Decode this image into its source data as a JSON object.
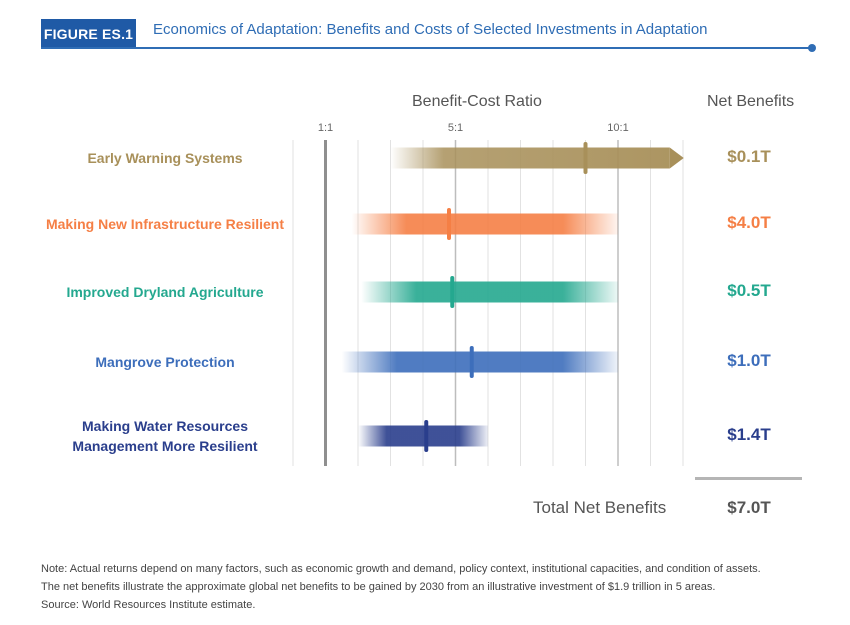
{
  "figure": {
    "badge": "FIGURE ES.1",
    "title": "Economics of Adaptation: Benefits and Costs of Selected Investments in Adaptation"
  },
  "headers": {
    "ratio": "Benefit-Cost Ratio",
    "net": "Net Benefits"
  },
  "chart_data": {
    "type": "bar",
    "title": "Economics of Adaptation: Benefits and Costs of Selected Investments in Adaptation",
    "xlabel": "Benefit-Cost Ratio",
    "xlim": [
      0,
      12
    ],
    "ticks": [
      {
        "value": 1,
        "label": "1:1"
      },
      {
        "value": 5,
        "label": "5:1"
      },
      {
        "value": 10,
        "label": "10:1"
      }
    ],
    "grid": true,
    "categories": [
      "Early Warning Systems",
      "Making New Infrastructure Resilient",
      "Improved Dryland Agriculture",
      "Mangrove Protection",
      "Making Water Resources Management More Resilient"
    ],
    "series": [
      {
        "category": "Early Warning Systems",
        "color": "#a8905a",
        "low": 3.0,
        "high": 11.9,
        "midpoint": 9.0,
        "open_ended": true,
        "net_benefits": "$0.1T"
      },
      {
        "category": "Making New Infrastructure Resilient",
        "color": "#f57f45",
        "low": 1.8,
        "high": 10.0,
        "midpoint": 4.8,
        "open_ended": false,
        "net_benefits": "$4.0T"
      },
      {
        "category": "Improved Dryland Agriculture",
        "color": "#24a88f",
        "low": 2.1,
        "high": 10.0,
        "midpoint": 4.9,
        "open_ended": false,
        "net_benefits": "$0.5T"
      },
      {
        "category": "Mangrove Protection",
        "color": "#3d6ebb",
        "low": 1.5,
        "high": 10.0,
        "midpoint": 5.5,
        "open_ended": false,
        "net_benefits": "$1.0T"
      },
      {
        "category": "Making Water Resources Management More Resilient",
        "color": "#2a3e8c",
        "low": 2.0,
        "high": 6.0,
        "midpoint": 4.1,
        "open_ended": false,
        "net_benefits": "$1.4T"
      }
    ],
    "total": {
      "label": "Total Net Benefits",
      "value": "$7.0T"
    }
  },
  "labels": [
    {
      "lines": [
        "Early Warning Systems"
      ],
      "color": "#a8905a"
    },
    {
      "lines": [
        "Making New Infrastructure Resilient"
      ],
      "color": "#f57f45"
    },
    {
      "lines": [
        "Improved Dryland Agriculture"
      ],
      "color": "#24a88f"
    },
    {
      "lines": [
        "Mangrove Protection"
      ],
      "color": "#3d6ebb"
    },
    {
      "lines": [
        "Making Water Resources",
        "Management More Resilient"
      ],
      "color": "#2a3e8c"
    }
  ],
  "notes": {
    "line1": "Note: Actual returns depend on many factors, such as economic growth and demand, policy context, institutional capacities, and condition of assets.",
    "line2": "The net benefits illustrate the approximate global net benefits to be gained by 2030 from an illustrative investment of $1.9 trillion in 5 areas.",
    "line3": "Source: World Resources Institute estimate."
  }
}
